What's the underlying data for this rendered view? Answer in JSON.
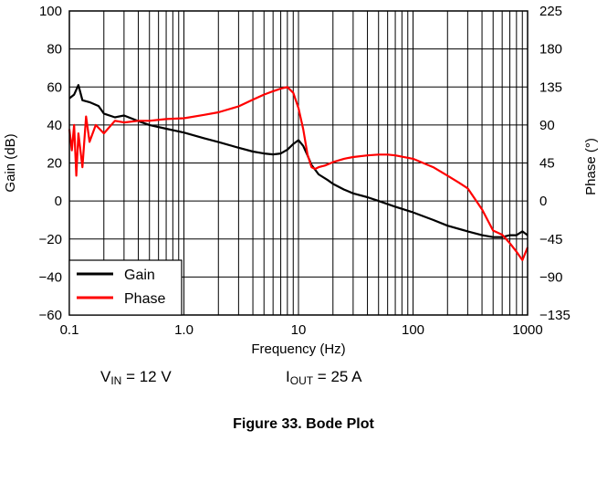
{
  "chart_data": {
    "type": "line",
    "xscale": "log",
    "xlim": [
      0.1,
      1000
    ],
    "ylim": [
      -60,
      100
    ],
    "y2lim": [
      -135,
      225
    ],
    "grid": true,
    "legend_position": "bottom-left",
    "xlabel": "Frequency (Hz)",
    "ylabel": "Gain (dB)",
    "y2label": "Phase (°)",
    "x_tick_labels": [
      "0.1",
      "1.0",
      "10",
      "100",
      "1000"
    ],
    "x_ticks": [
      0.1,
      1,
      10,
      100,
      1000
    ],
    "y_tick_labels": [
      "100",
      "80",
      "60",
      "40",
      "20",
      "0",
      "−20",
      "−40",
      "−60"
    ],
    "y_ticks": [
      100,
      80,
      60,
      40,
      20,
      0,
      -20,
      -40,
      -60
    ],
    "y2_tick_labels": [
      "225",
      "180",
      "135",
      "90",
      "45",
      "0",
      "−45",
      "−90",
      "−135"
    ],
    "y2_ticks": [
      225,
      180,
      135,
      90,
      45,
      0,
      -45,
      -90,
      -135
    ],
    "series": [
      {
        "name": "Gain",
        "color": "#000000",
        "axis": "left",
        "x": [
          0.1,
          0.11,
          0.12,
          0.13,
          0.15,
          0.18,
          0.2,
          0.25,
          0.3,
          0.4,
          0.5,
          0.7,
          1.0,
          1.5,
          2,
          3,
          4,
          5,
          6,
          7,
          8,
          9,
          10,
          11,
          12,
          13,
          15,
          18,
          20,
          25,
          30,
          40,
          50,
          70,
          100,
          150,
          200,
          300,
          400,
          500,
          600,
          700,
          800,
          900,
          1000
        ],
        "y": [
          54,
          56,
          61,
          53,
          52,
          50,
          46,
          44,
          45,
          42,
          40,
          38,
          36,
          33,
          31,
          28,
          26,
          25,
          24.5,
          25,
          27,
          30,
          32,
          29,
          24,
          19,
          14,
          11,
          9,
          6,
          4,
          2,
          0,
          -3,
          -6,
          -10,
          -13,
          -16,
          -18,
          -19,
          -19,
          -18,
          -18,
          -16,
          -18
        ]
      },
      {
        "name": "Phase",
        "color": "#ff0000",
        "axis": "right",
        "x": [
          0.1,
          0.105,
          0.11,
          0.115,
          0.12,
          0.13,
          0.14,
          0.15,
          0.17,
          0.2,
          0.25,
          0.3,
          0.4,
          0.5,
          0.7,
          1.0,
          1.5,
          2,
          3,
          4,
          5,
          6,
          7,
          8,
          9,
          10,
          11,
          12,
          13,
          14,
          15,
          17,
          20,
          25,
          30,
          40,
          50,
          60,
          70,
          100,
          150,
          200,
          250,
          300,
          400,
          500,
          600,
          700,
          800,
          900,
          1000
        ],
        "y": [
          85,
          60,
          90,
          30,
          80,
          40,
          100,
          70,
          90,
          80,
          95,
          93,
          95,
          95,
          97,
          98,
          102,
          105,
          112,
          120,
          126,
          130,
          133,
          135,
          128,
          110,
          85,
          55,
          40,
          38,
          40,
          42,
          46,
          50,
          52,
          54,
          55,
          55,
          54,
          50,
          40,
          30,
          22,
          15,
          -10,
          -35,
          -40,
          -50,
          -60,
          -70,
          -55
        ]
      }
    ],
    "annotations": [
      {
        "main": "V",
        "sub": "IN",
        "rest": " = 12 V"
      },
      {
        "main": "I",
        "sub": "OUT",
        "rest": " = 25 A"
      }
    ],
    "caption": "Figure 33. Bode Plot"
  }
}
